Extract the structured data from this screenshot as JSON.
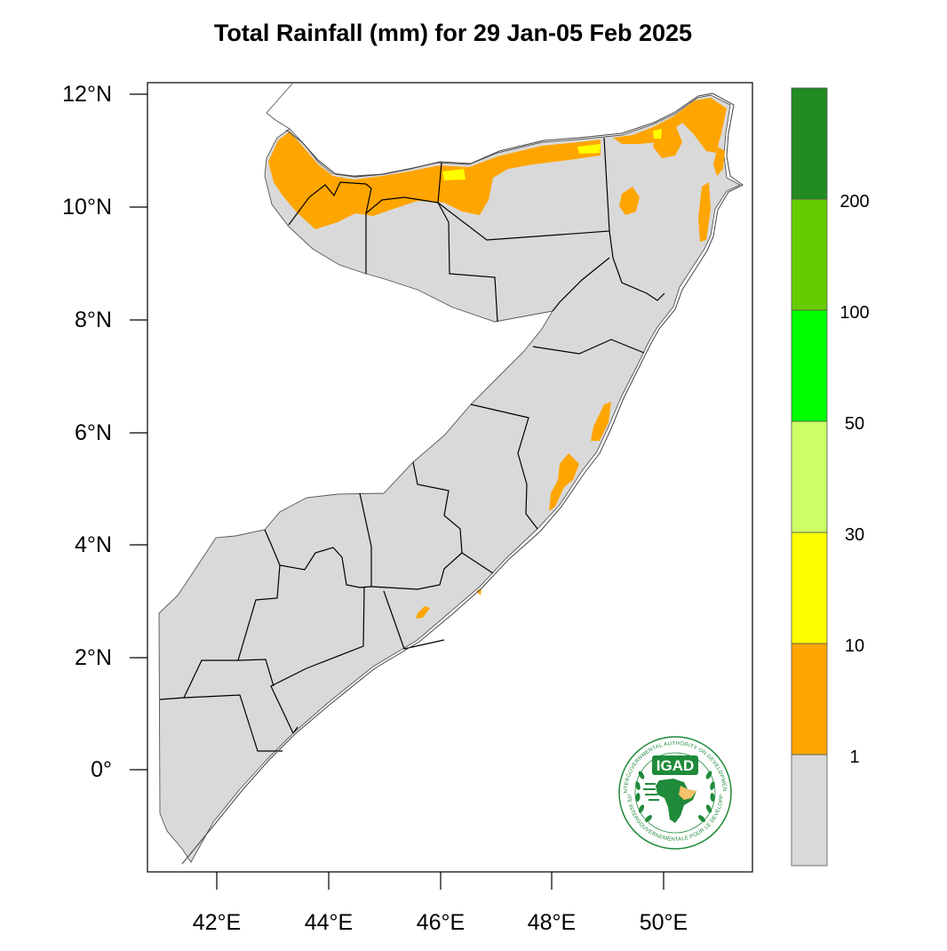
{
  "map": {
    "title": "Total Rainfall (mm) for 29 Jan-05 Feb 2025",
    "lat_ticks": [
      "12°N",
      "10°N",
      "8°N",
      "6°N",
      "4°N",
      "2°N",
      "0°"
    ],
    "lon_ticks": [
      "42°E",
      "44°E",
      "46°E",
      "48°E",
      "50°E"
    ],
    "lat_range": [
      -1.9,
      12.2
    ],
    "lon_range": [
      40.8,
      51.6
    ],
    "colors": {
      "land": "#d9d9d9",
      "bin_1_10": "#ffa500",
      "bin_10_30": "#ffff00",
      "bin_30_50": "#ccff66",
      "bin_50_100": "#00ff00",
      "bin_100_200": "#66cc00",
      "bin_200_plus": "#228b22"
    }
  },
  "legend": {
    "labels": [
      "1",
      "10",
      "30",
      "50",
      "100",
      "200"
    ],
    "colors": [
      "#d9d9d9",
      "#ffa500",
      "#ffff00",
      "#ccff66",
      "#00ff00",
      "#66cc00",
      "#228b22"
    ]
  },
  "logo": {
    "name": "IGAD",
    "ring_top": "INTERGOVERNMENTAL AUTHORITY ON DEVELOPMENT",
    "ring_bottom": "AUTORITE INTERGOUVERNEMENTALE POUR LE DEVELOPPEMENT",
    "icon": "africa-map-icon"
  }
}
